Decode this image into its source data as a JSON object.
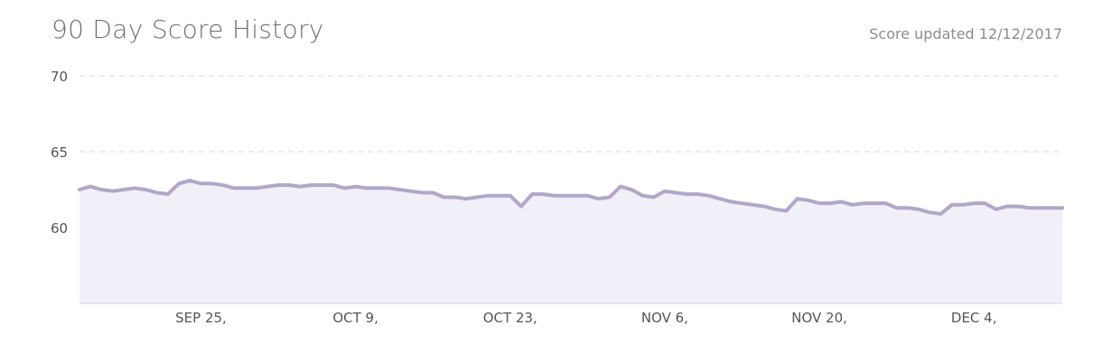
{
  "header": {
    "title": "90 Day Score History",
    "updated": "Score updated 12/12/2017"
  },
  "colors": {
    "line": "#b3a6c8",
    "fill": "#f1eff8",
    "grid": "#d9d9d9"
  },
  "chart_data": {
    "type": "area",
    "title": "90 Day Score History",
    "xlabel": "",
    "ylabel": "",
    "ylim": [
      55,
      70
    ],
    "yticks": [
      60,
      65,
      70
    ],
    "x_tick_labels": [
      "SEP 25,",
      "OCT 9,",
      "OCT 23,",
      "NOV 6,",
      "NOV 20,",
      "DEC 4,"
    ],
    "x_range": [
      "2017-09-14",
      "2017-12-12"
    ],
    "grid": true,
    "legend": "none",
    "series": [
      {
        "dates": [
          "2017-09-14",
          "2017-09-15",
          "2017-09-16",
          "2017-09-17",
          "2017-09-18",
          "2017-09-19",
          "2017-09-20",
          "2017-09-21",
          "2017-09-22",
          "2017-09-23",
          "2017-09-24",
          "2017-09-25",
          "2017-09-26",
          "2017-09-27",
          "2017-09-28",
          "2017-09-29",
          "2017-09-30",
          "2017-10-01",
          "2017-10-02",
          "2017-10-03",
          "2017-10-04",
          "2017-10-05",
          "2017-10-06",
          "2017-10-07",
          "2017-10-08",
          "2017-10-09",
          "2017-10-10",
          "2017-10-11",
          "2017-10-12",
          "2017-10-13",
          "2017-10-14",
          "2017-10-15",
          "2017-10-16",
          "2017-10-17",
          "2017-10-18",
          "2017-10-19",
          "2017-10-20",
          "2017-10-21",
          "2017-10-22",
          "2017-10-23",
          "2017-10-24",
          "2017-10-25",
          "2017-10-26",
          "2017-10-27",
          "2017-10-28",
          "2017-10-29",
          "2017-10-30",
          "2017-10-31",
          "2017-11-01",
          "2017-11-02",
          "2017-11-03",
          "2017-11-04",
          "2017-11-05",
          "2017-11-06",
          "2017-11-07",
          "2017-11-08",
          "2017-11-09",
          "2017-11-10",
          "2017-11-11",
          "2017-11-12",
          "2017-11-13",
          "2017-11-14",
          "2017-11-15",
          "2017-11-16",
          "2017-11-17",
          "2017-11-18",
          "2017-11-19",
          "2017-11-20",
          "2017-11-21",
          "2017-11-22",
          "2017-11-23",
          "2017-11-24",
          "2017-11-25",
          "2017-11-26",
          "2017-11-27",
          "2017-11-28",
          "2017-11-29",
          "2017-11-30",
          "2017-12-01",
          "2017-12-02",
          "2017-12-03",
          "2017-12-04",
          "2017-12-05",
          "2017-12-06",
          "2017-12-07",
          "2017-12-08",
          "2017-12-09",
          "2017-12-10",
          "2017-12-11",
          "2017-12-12"
        ],
        "values": [
          62.5,
          62.7,
          62.5,
          62.4,
          62.5,
          62.6,
          62.5,
          62.3,
          62.2,
          62.9,
          63.1,
          62.9,
          62.9,
          62.8,
          62.6,
          62.6,
          62.6,
          62.7,
          62.8,
          62.8,
          62.7,
          62.8,
          62.8,
          62.8,
          62.6,
          62.7,
          62.6,
          62.6,
          62.6,
          62.5,
          62.4,
          62.3,
          62.3,
          62.0,
          62.0,
          61.9,
          62.0,
          62.1,
          62.1,
          62.1,
          61.4,
          62.2,
          62.2,
          62.1,
          62.1,
          62.1,
          62.1,
          61.9,
          62.0,
          62.7,
          62.5,
          62.1,
          62.0,
          62.4,
          62.3,
          62.2,
          62.2,
          62.1,
          61.9,
          61.7,
          61.6,
          61.5,
          61.4,
          61.2,
          61.1,
          61.9,
          61.8,
          61.6,
          61.6,
          61.7,
          61.5,
          61.6,
          61.6,
          61.6,
          61.3,
          61.3,
          61.2,
          61.0,
          60.9,
          61.5,
          61.5,
          61.6,
          61.6,
          61.2,
          61.4,
          61.4,
          61.3,
          61.3,
          61.3,
          61.3
        ]
      }
    ]
  }
}
